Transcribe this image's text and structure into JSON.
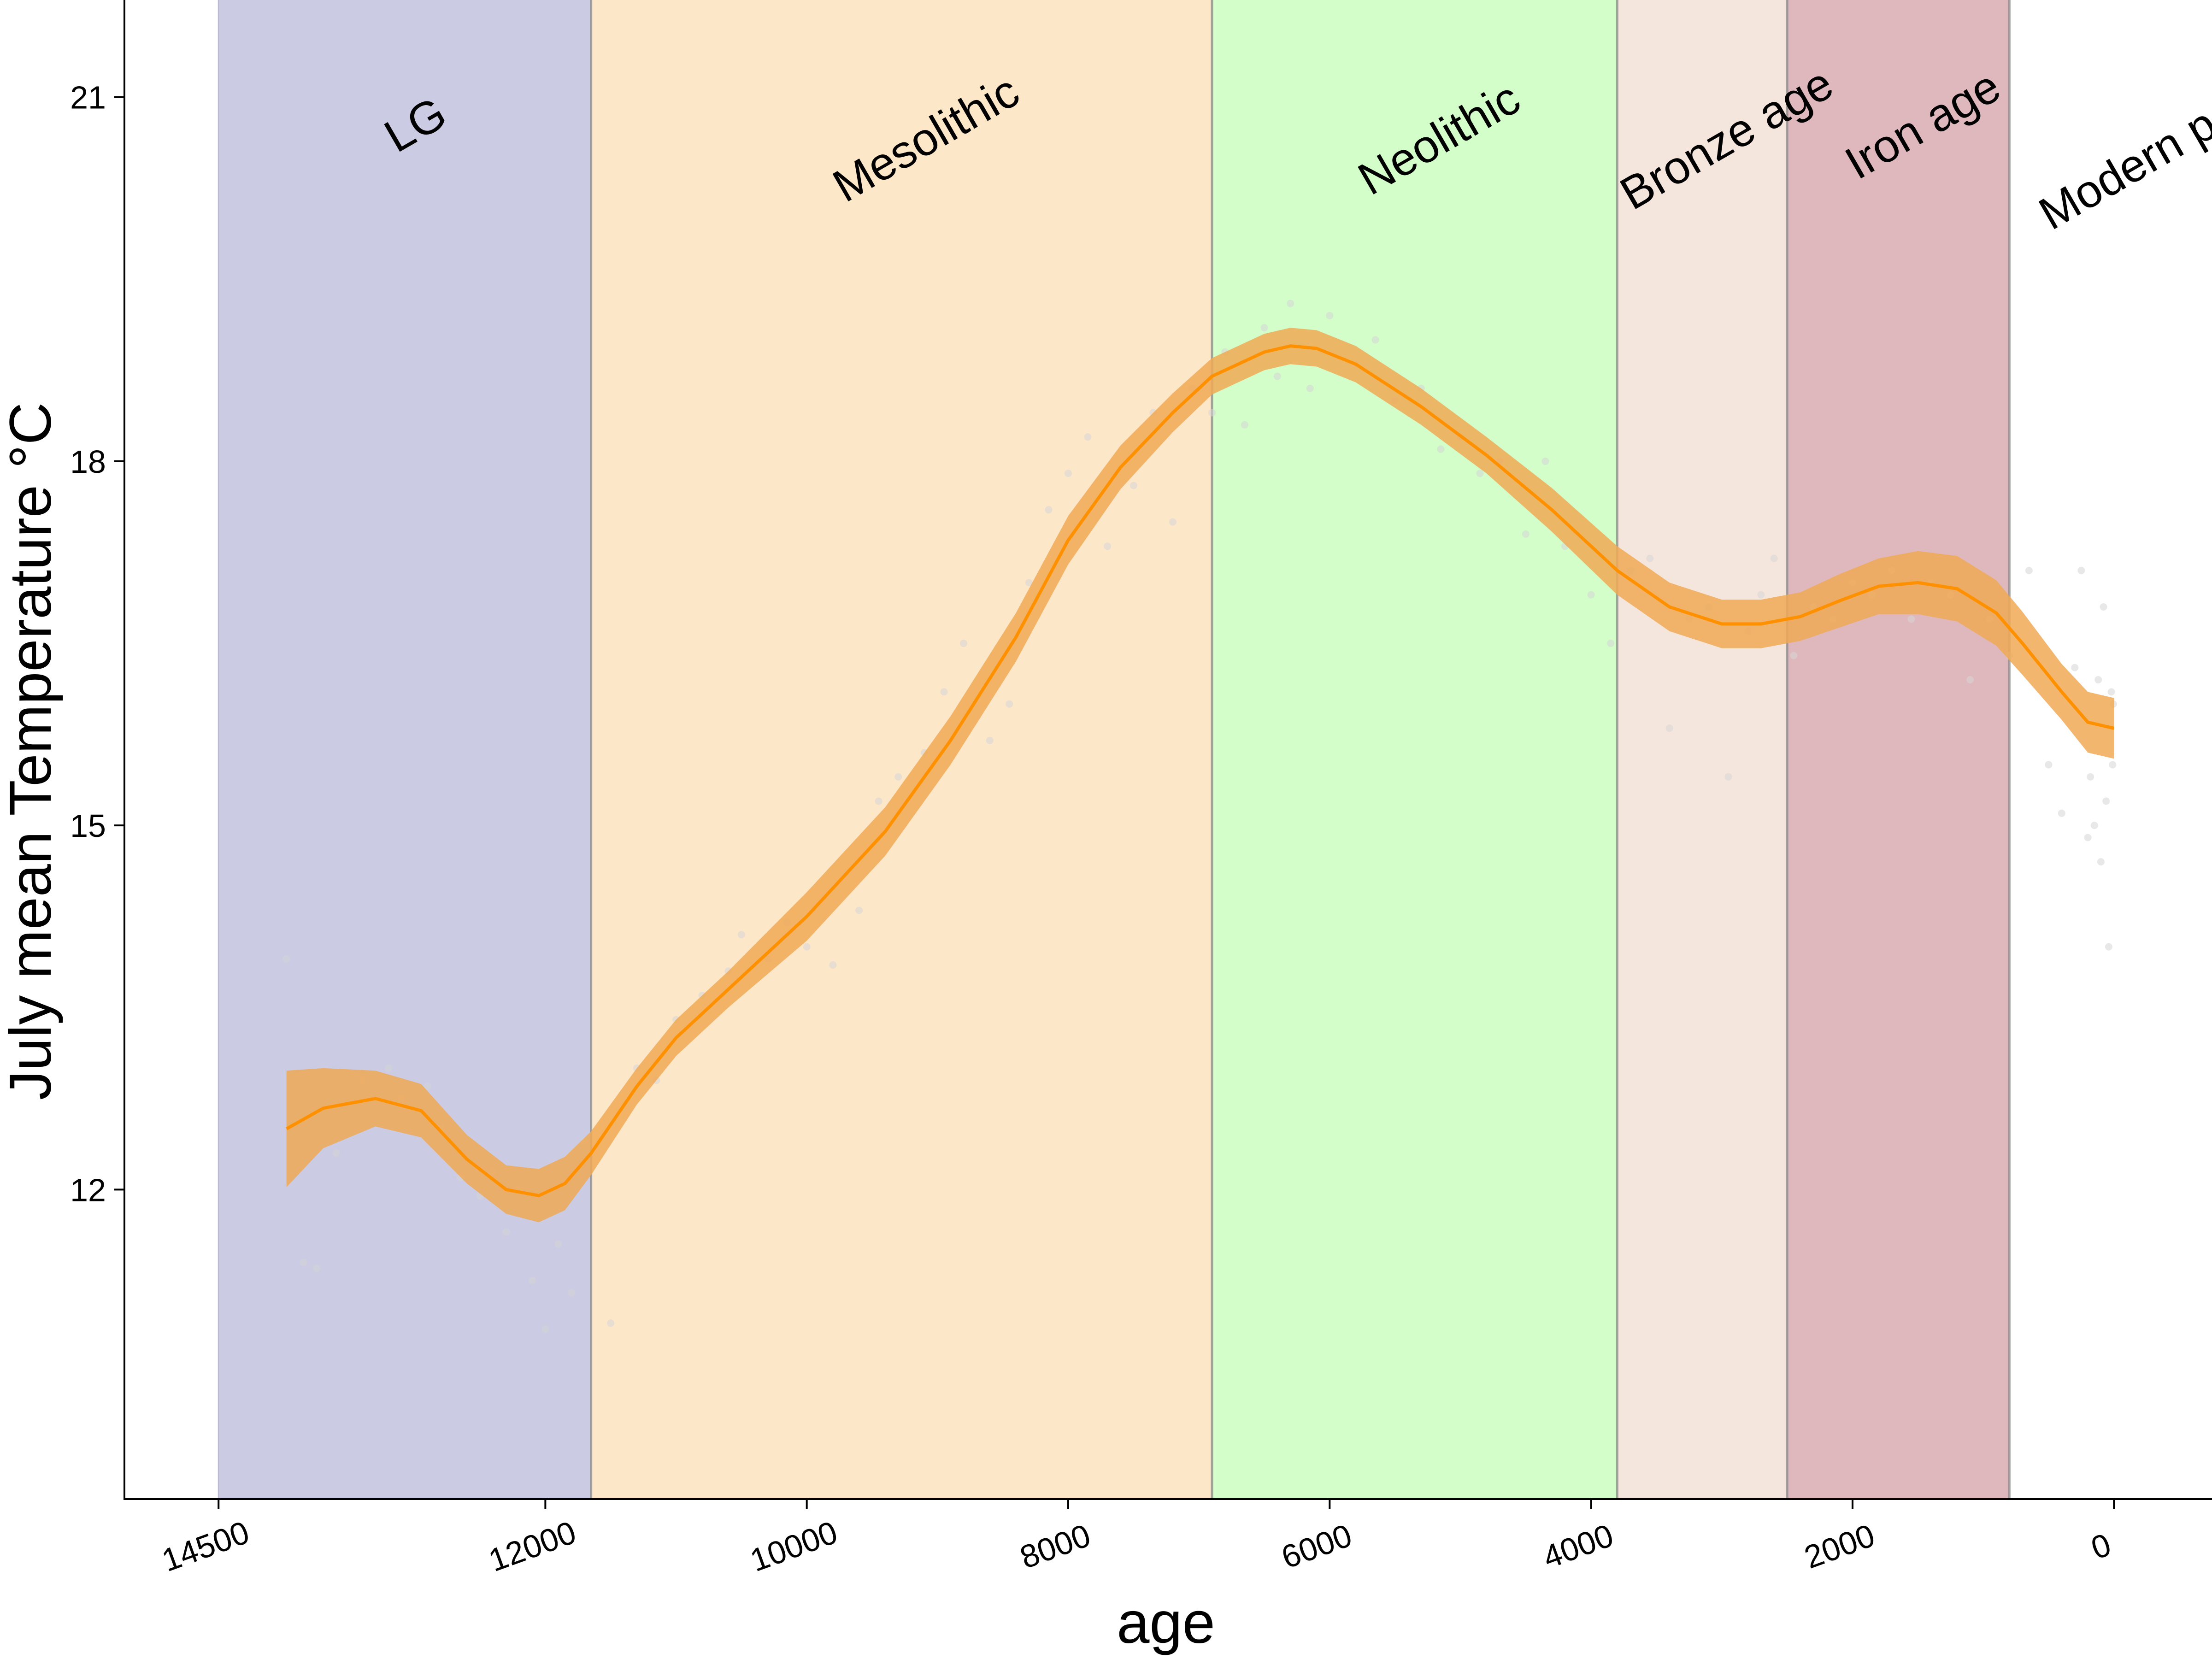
{
  "chart_data": {
    "type": "line",
    "xlabel": "age",
    "ylabel": "July mean Temperature °C",
    "xlim": [
      15220,
      -750
    ],
    "ylim": [
      9.45,
      21.8
    ],
    "x_ticks": [
      14500,
      12000,
      10000,
      8000,
      6000,
      4000,
      2000,
      0
    ],
    "y_ticks": [
      12,
      15,
      18,
      21
    ],
    "grid": false,
    "periods": [
      {
        "name": "LG",
        "start": 14500,
        "end": 11650,
        "color": "#cbcbe4"
      },
      {
        "name": "Mesolithic",
        "start": 11650,
        "end": 6900,
        "color": "#fde7c9"
      },
      {
        "name": "Neolithic",
        "start": 6900,
        "end": 3800,
        "color": "#d3fdc9"
      },
      {
        "name": "Bronze age",
        "start": 3800,
        "end": 2500,
        "color": "#f5e6dd"
      },
      {
        "name": "Iron age",
        "start": 2500,
        "end": 800,
        "color": "#dfb8bd"
      },
      {
        "name": "Modern period",
        "start": 800,
        "end": -750,
        "color": "#ffffff"
      }
    ],
    "smooth": {
      "color": "#ff9100",
      "band_color": "#f0a956",
      "x": [
        13980,
        13700,
        13300,
        12950,
        12600,
        12300,
        12050,
        11850,
        11650,
        11300,
        11000,
        10600,
        10000,
        9400,
        8900,
        8400,
        8000,
        7600,
        7200,
        6900,
        6500,
        6300,
        6100,
        5800,
        5300,
        4800,
        4300,
        3800,
        3400,
        3000,
        2700,
        2400,
        2100,
        1800,
        1500,
        1200,
        900,
        700,
        400,
        200,
        0
      ],
      "y": [
        12.5,
        12.67,
        12.75,
        12.65,
        12.25,
        12.0,
        11.95,
        12.05,
        12.3,
        12.85,
        13.25,
        13.65,
        14.25,
        14.95,
        15.7,
        16.55,
        17.35,
        17.95,
        18.4,
        18.7,
        18.9,
        18.95,
        18.93,
        18.8,
        18.45,
        18.05,
        17.6,
        17.1,
        16.8,
        16.66,
        16.66,
        16.72,
        16.85,
        16.97,
        17.0,
        16.95,
        16.75,
        16.5,
        16.1,
        15.85,
        15.8
      ],
      "upper": [
        12.98,
        13.0,
        12.98,
        12.87,
        12.45,
        12.2,
        12.17,
        12.27,
        12.48,
        13.0,
        13.4,
        13.8,
        14.45,
        15.15,
        15.9,
        16.75,
        17.55,
        18.13,
        18.56,
        18.85,
        19.05,
        19.1,
        19.08,
        18.95,
        18.6,
        18.2,
        17.78,
        17.3,
        17.0,
        16.86,
        16.86,
        16.92,
        17.07,
        17.2,
        17.26,
        17.22,
        17.02,
        16.76,
        16.33,
        16.1,
        16.05
      ],
      "lower": [
        12.02,
        12.34,
        12.52,
        12.43,
        12.05,
        11.8,
        11.73,
        11.83,
        12.12,
        12.7,
        13.1,
        13.5,
        14.05,
        14.75,
        15.5,
        16.35,
        17.15,
        17.77,
        18.24,
        18.55,
        18.75,
        18.8,
        18.78,
        18.65,
        18.3,
        17.9,
        17.42,
        16.9,
        16.6,
        16.46,
        16.46,
        16.52,
        16.63,
        16.74,
        16.74,
        16.68,
        16.48,
        16.24,
        15.87,
        15.6,
        15.55
      ]
    },
    "samples": {
      "color": "#d5d5d5",
      "x": [
        13980,
        13850,
        13750,
        13600,
        13400,
        13200,
        13100,
        12900,
        12800,
        12650,
        12500,
        12400,
        12300,
        12200,
        12100,
        12000,
        11900,
        11800,
        11700,
        11500,
        11300,
        11150,
        11000,
        10800,
        10600,
        10500,
        10300,
        10150,
        10000,
        9800,
        9600,
        9450,
        9300,
        9100,
        8950,
        8800,
        8600,
        8450,
        8300,
        8150,
        8000,
        7850,
        7700,
        7500,
        7350,
        7200,
        7050,
        6900,
        6800,
        6650,
        6500,
        6400,
        6300,
        6150,
        6000,
        5800,
        5650,
        5500,
        5300,
        5150,
        5000,
        4850,
        4700,
        4500,
        4350,
        4200,
        4000,
        3850,
        3700,
        3550,
        3400,
        3250,
        3100,
        2950,
        2800,
        2700,
        2600,
        2450,
        2300,
        2150,
        2000,
        1850,
        1700,
        1550,
        1400,
        1250,
        1100,
        950,
        800,
        650,
        500,
        400,
        300,
        250,
        200,
        180,
        150,
        120,
        100,
        80,
        60,
        40,
        20,
        10,
        5
      ],
      "y": [
        13.9,
        11.4,
        11.35,
        12.3,
        12.9,
        13.0,
        12.75,
        12.85,
        12.5,
        12.1,
        11.95,
        12.15,
        11.65,
        12.0,
        11.25,
        10.85,
        11.55,
        11.15,
        12.4,
        10.9,
        13.0,
        12.9,
        13.4,
        13.6,
        13.8,
        14.1,
        13.9,
        14.2,
        14.0,
        13.85,
        14.3,
        15.2,
        15.4,
        15.6,
        16.1,
        16.5,
        15.7,
        16.0,
        17.0,
        17.6,
        17.9,
        18.2,
        17.3,
        17.8,
        18.4,
        17.5,
        18.6,
        18.4,
        18.9,
        18.3,
        19.1,
        18.7,
        19.3,
        18.6,
        19.2,
        18.8,
        19.0,
        18.5,
        18.6,
        18.1,
        18.2,
        17.9,
        18.0,
        17.4,
        18.0,
        17.3,
        16.9,
        16.5,
        17.1,
        17.2,
        15.8,
        16.7,
        16.8,
        15.4,
        16.6,
        16.9,
        17.2,
        16.4,
        16.8,
        16.7,
        17.0,
        16.9,
        17.1,
        16.7,
        17.0,
        16.9,
        16.2,
        16.7,
        16.4,
        17.1,
        15.5,
        15.1,
        16.3,
        17.1,
        14.9,
        15.4,
        15.0,
        16.2,
        14.7,
        16.8,
        15.2,
        14.0,
        16.1,
        15.5,
        16.0
      ]
    }
  }
}
